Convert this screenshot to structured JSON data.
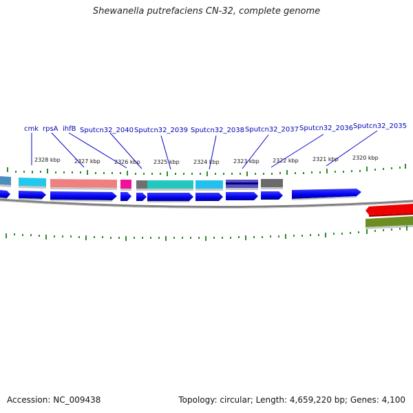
{
  "title": "Shewanella putrefaciens CN-32, complete genome",
  "footer": {
    "accession": "Accession: NC_009438",
    "summary": "Topology: circular; Length: 4,659,220 bp; Genes: 4,100"
  },
  "colors": {
    "gene_label": "#0000b4",
    "cds_forward": "#0000ee",
    "tick": "#2a8a2a",
    "backbone": "#808080"
  },
  "scale_labels": [
    "2328 kbp",
    "2327 kbp",
    "2326 kbp",
    "2325 kbp",
    "2324 kbp",
    "2323 kbp",
    "2322 kbp",
    "2321 kbp",
    "2320 kbp"
  ],
  "gene_labels": [
    "cmk",
    "rpsA",
    "ihfB",
    "Sputcn32_2040",
    "Sputcn32_2039",
    "Sputcn32_2038",
    "Sputcn32_2037",
    "Sputcn32_2036",
    "Sputcn32_2035"
  ],
  "features": [
    {
      "name": "feature-steelblue",
      "color": "#4a8fc0"
    },
    {
      "name": "feature-cyan",
      "color": "#22c8ee"
    },
    {
      "name": "feature-salmon",
      "color": "#f08080"
    },
    {
      "name": "feature-magenta",
      "color": "#ee1199"
    },
    {
      "name": "feature-gray",
      "color": "#707070"
    },
    {
      "name": "feature-teal",
      "color": "#22c8c0"
    },
    {
      "name": "feature-cyan-2",
      "color": "#22c0ee"
    },
    {
      "name": "feature-purple-navy",
      "color": "#5a50c0"
    },
    {
      "name": "feature-gray-2",
      "color": "#6a6a6a"
    },
    {
      "name": "feature-red",
      "color": "#ee0000"
    },
    {
      "name": "feature-olive",
      "color": "#6b8e23"
    }
  ]
}
